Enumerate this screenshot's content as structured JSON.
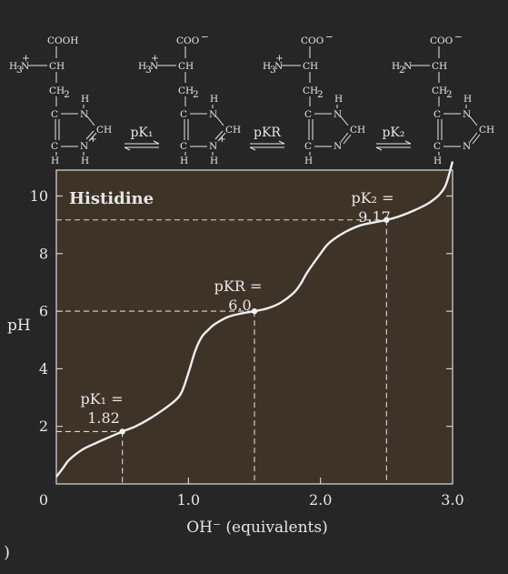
{
  "chart_data": {
    "type": "line",
    "title": "Histidine",
    "xlabel": "OH⁻ (equivalents)",
    "ylabel": "pH",
    "xlim": [
      0,
      3
    ],
    "ylim": [
      0,
      10.9
    ],
    "xticks": [
      "0",
      "1.0",
      "2.0",
      "3.0"
    ],
    "yticks": [
      "2",
      "4",
      "6",
      "8",
      "10"
    ],
    "curve": {
      "x": [
        0,
        0.05,
        0.1,
        0.2,
        0.3,
        0.4,
        0.5,
        0.6,
        0.7,
        0.8,
        0.9,
        0.95,
        1.0,
        1.05,
        1.1,
        1.15,
        1.2,
        1.3,
        1.4,
        1.5,
        1.6,
        1.7,
        1.8,
        1.85,
        1.9,
        2.0,
        2.05,
        2.1,
        2.2,
        2.3,
        2.4,
        2.5,
        2.6,
        2.7,
        2.8,
        2.85,
        2.9,
        2.95,
        3.0
      ],
      "y": [
        0.25,
        0.55,
        0.85,
        1.2,
        1.42,
        1.62,
        1.82,
        2.0,
        2.25,
        2.55,
        2.9,
        3.2,
        3.85,
        4.6,
        5.1,
        5.35,
        5.55,
        5.8,
        5.92,
        6.0,
        6.1,
        6.3,
        6.65,
        6.95,
        7.35,
        8.0,
        8.3,
        8.5,
        8.78,
        8.98,
        9.08,
        9.17,
        9.3,
        9.48,
        9.7,
        9.85,
        10.05,
        10.4,
        11.2
      ]
    },
    "annotations": [
      {
        "name": "pK1",
        "label": "pK₁ =",
        "value": "1.82",
        "x": 0.5,
        "y": 1.82
      },
      {
        "name": "pKR",
        "label": "pKR =",
        "value": "6.0",
        "x": 1.5,
        "y": 6.0
      },
      {
        "name": "pK2",
        "label": "pK₂ =",
        "value": "9.17",
        "x": 2.5,
        "y": 9.17
      }
    ]
  },
  "structures": {
    "coo_h": "COOH",
    "coo_minus": "COO",
    "h3n": "H₃N",
    "h2n": "H₂N",
    "ch": "CH",
    "ch2": "CH₂",
    "ring_c": "C",
    "ring_n": "N",
    "ring_h": "H",
    "plus": "+",
    "minus": "−"
  },
  "equilibria": [
    "pK₁",
    "pKR",
    "pK₂"
  ],
  "corner_mark": ")"
}
